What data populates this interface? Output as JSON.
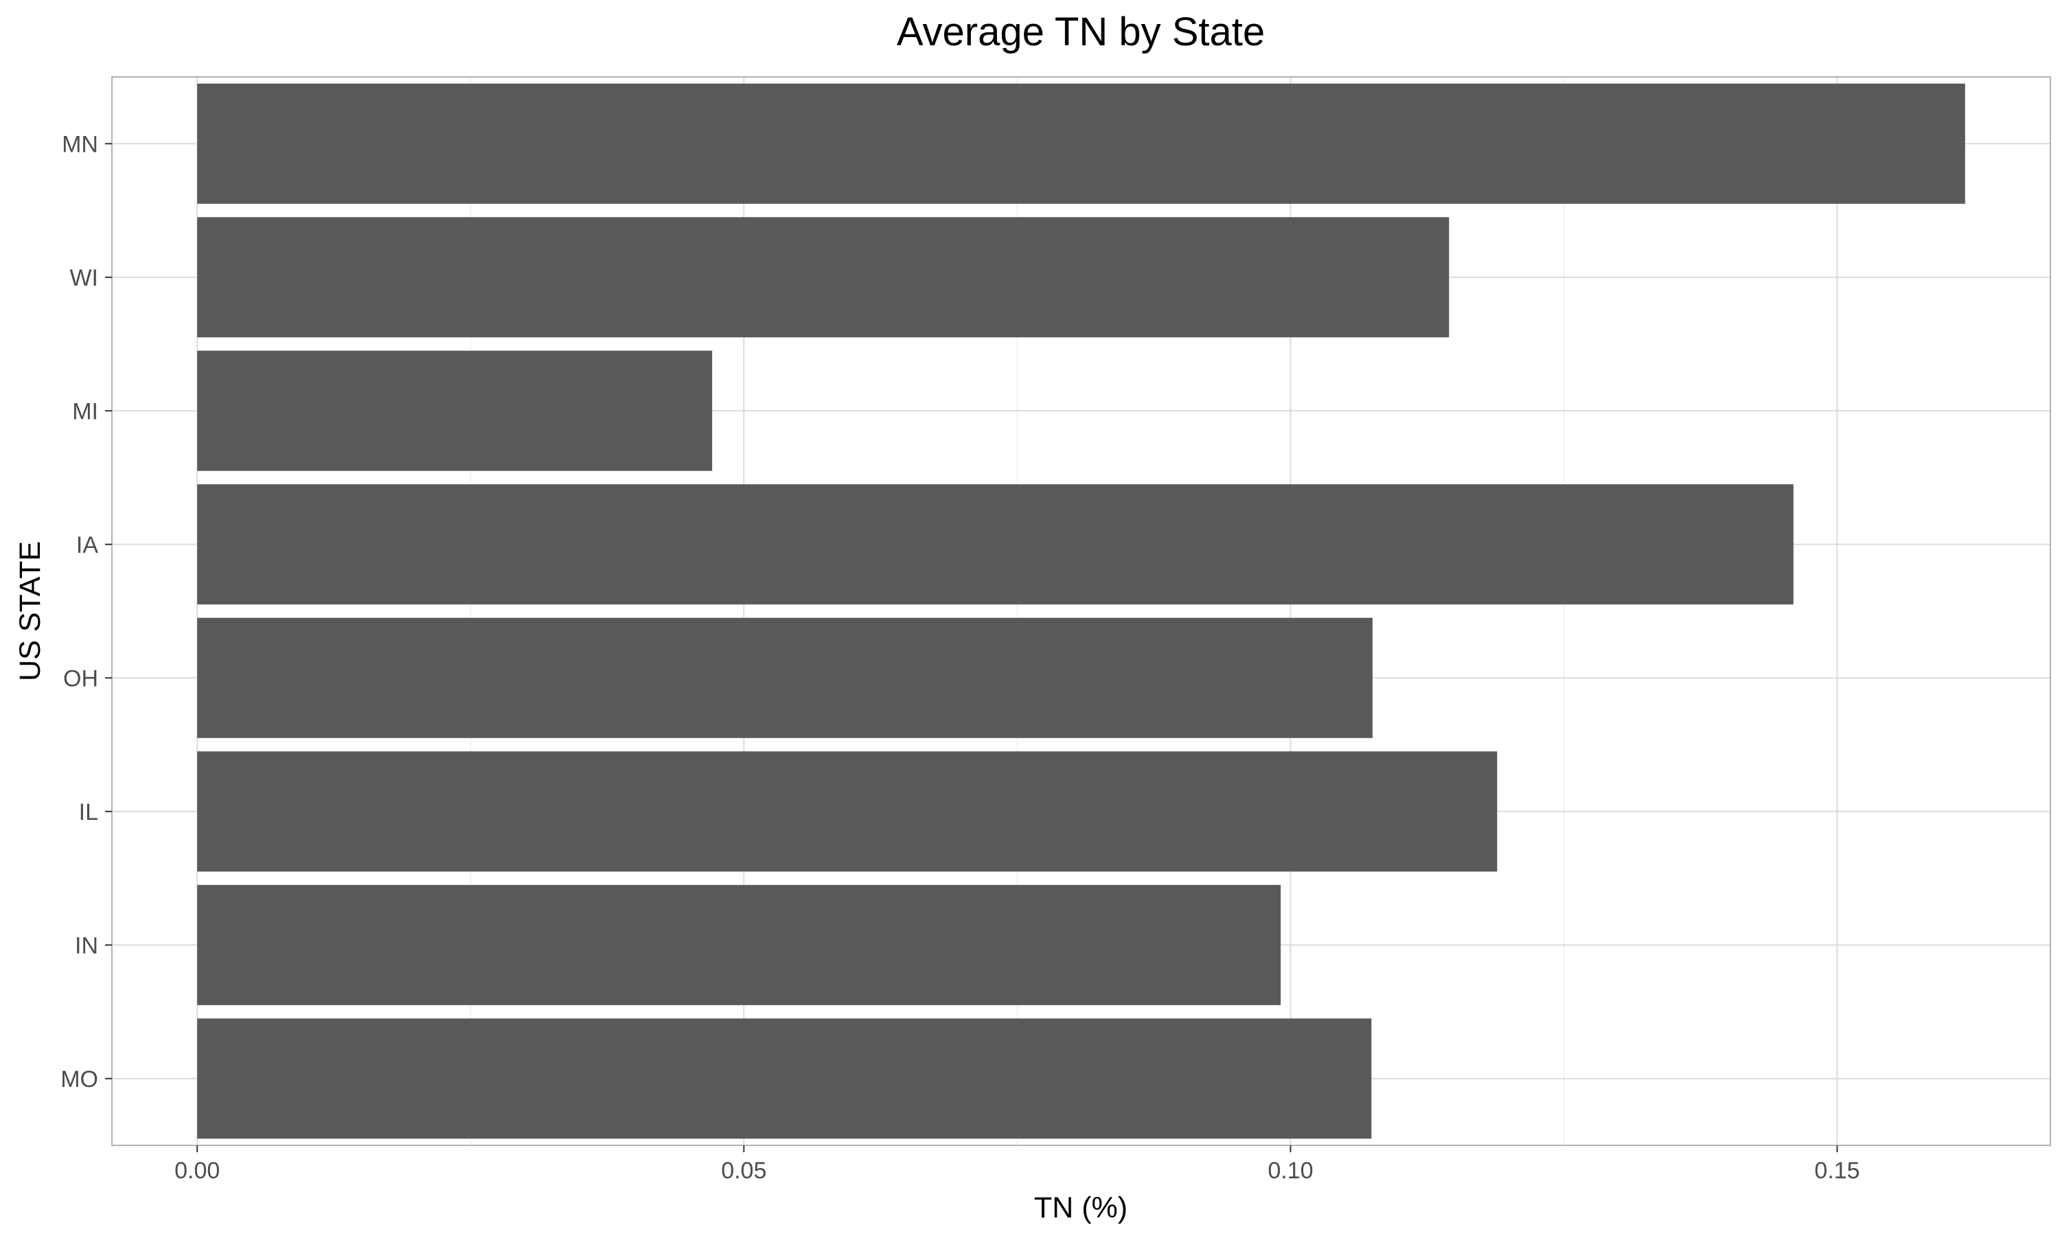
{
  "chart_data": {
    "type": "bar",
    "orientation": "horizontal",
    "title": "Average TN by State",
    "xlabel": "TN (%)",
    "ylabel": "US STATE",
    "categories": [
      "MN",
      "WI",
      "MI",
      "IA",
      "OH",
      "IL",
      "IN",
      "MO"
    ],
    "values": [
      0.1617,
      0.1145,
      0.0471,
      0.146,
      0.1075,
      0.1189,
      0.0991,
      0.1074
    ],
    "xlim": [
      -0.0078,
      0.1695
    ],
    "x_ticks": [
      0.0,
      0.05,
      0.1,
      0.15
    ],
    "x_tick_labels": [
      "0.00",
      "0.05",
      "0.10",
      "0.15"
    ],
    "x_minor_ticks": [
      0.025,
      0.075,
      0.125
    ],
    "grid": true,
    "legend": "none",
    "colors": {
      "bar": "#595959",
      "grid_major": "#dcdcdc",
      "grid_minor": "#eeeeee",
      "panel_border": "#b3b3b3",
      "tick_text": "#4d4d4d"
    }
  }
}
